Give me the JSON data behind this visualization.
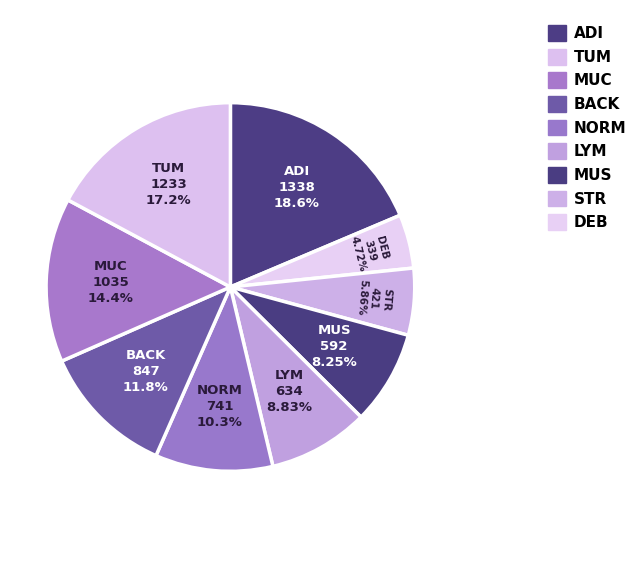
{
  "labels": [
    "ADI",
    "DEB",
    "STR",
    "MUS",
    "LYM",
    "NORM",
    "BACK",
    "MUC",
    "TUM"
  ],
  "values": [
    1338,
    339,
    421,
    592,
    634,
    741,
    847,
    1035,
    1233
  ],
  "percentages": [
    "18.6%",
    "4.72%",
    "5.86%",
    "8.25%",
    "8.83%",
    "10.3%",
    "11.8%",
    "14.4%",
    "17.2%"
  ],
  "colors": [
    "#4d3d85",
    "#e8d0f5",
    "#cdb0e8",
    "#4a3d82",
    "#c0a0e0",
    "#9878cc",
    "#6e5aa8",
    "#a878cc",
    "#ddc0f0"
  ],
  "legend_order": [
    "ADI",
    "TUM",
    "MUC",
    "BACK",
    "NORM",
    "LYM",
    "MUS",
    "STR",
    "DEB"
  ],
  "legend_colors": [
    "#4d3d85",
    "#ddc0f0",
    "#a878cc",
    "#6e5aa8",
    "#9878cc",
    "#c0a0e0",
    "#4a3d82",
    "#cdb0e8",
    "#e8d0f5"
  ],
  "startangle": 90,
  "text_color_dark": "#2a1a3a",
  "text_color_light": "#ffffff"
}
